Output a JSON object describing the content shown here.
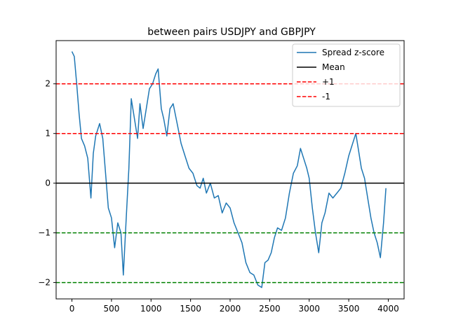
{
  "chart_data": {
    "type": "line",
    "title": "between pairs USDJPY and GBPJPY",
    "xlabel": "",
    "ylabel": "",
    "xlim": [
      -200,
      4200
    ],
    "ylim": [
      -2.33,
      2.87
    ],
    "xticks": [
      0,
      500,
      1000,
      1500,
      2000,
      2500,
      3000,
      3500,
      4000
    ],
    "xtick_labels": [
      "0",
      "500",
      "1000",
      "1500",
      "2000",
      "2500",
      "3000",
      "3500",
      "4000"
    ],
    "yticks": [
      -2,
      -1,
      0,
      1,
      2
    ],
    "ytick_labels": [
      "−2",
      "−1",
      "0",
      "1",
      "2"
    ],
    "grid": false,
    "legend_position": "upper right",
    "series": [
      {
        "name": "Spread z-score",
        "color": "#1f77b4",
        "x": [
          0,
          30,
          60,
          90,
          120,
          160,
          200,
          240,
          270,
          300,
          350,
          390,
          420,
          460,
          500,
          540,
          580,
          620,
          650,
          690,
          720,
          750,
          790,
          830,
          860,
          900,
          940,
          980,
          1020,
          1060,
          1090,
          1130,
          1160,
          1200,
          1240,
          1280,
          1330,
          1380,
          1430,
          1480,
          1530,
          1580,
          1620,
          1660,
          1700,
          1750,
          1800,
          1850,
          1900,
          1950,
          2000,
          2050,
          2100,
          2150,
          2200,
          2250,
          2300,
          2350,
          2400,
          2440,
          2480,
          2520,
          2560,
          2600,
          2650,
          2700,
          2750,
          2800,
          2850,
          2890,
          2930,
          2970,
          3000,
          3040,
          3080,
          3120,
          3160,
          3200,
          3250,
          3300,
          3350,
          3400,
          3450,
          3500,
          3550,
          3590,
          3620,
          3660,
          3700,
          3740,
          3780,
          3820,
          3860,
          3900,
          3940,
          3970
        ],
        "y": [
          2.65,
          2.55,
          2.0,
          1.4,
          0.9,
          0.75,
          0.5,
          -0.3,
          0.6,
          0.95,
          1.2,
          0.9,
          0.3,
          -0.5,
          -0.7,
          -1.3,
          -0.8,
          -1.0,
          -1.85,
          -0.6,
          0.3,
          1.7,
          1.3,
          0.9,
          1.6,
          1.1,
          1.5,
          1.9,
          2.0,
          2.2,
          2.3,
          1.5,
          1.3,
          0.95,
          1.5,
          1.6,
          1.2,
          0.8,
          0.55,
          0.3,
          0.2,
          -0.05,
          -0.1,
          0.1,
          -0.2,
          0.0,
          -0.3,
          -0.25,
          -0.6,
          -0.4,
          -0.5,
          -0.8,
          -1.0,
          -1.2,
          -1.6,
          -1.8,
          -1.85,
          -2.05,
          -2.1,
          -1.6,
          -1.55,
          -1.4,
          -1.1,
          -0.9,
          -0.95,
          -0.7,
          -0.2,
          0.2,
          0.35,
          0.7,
          0.5,
          0.3,
          0.1,
          -0.5,
          -1.0,
          -1.4,
          -0.8,
          -0.6,
          -0.2,
          -0.3,
          -0.2,
          -0.1,
          0.2,
          0.55,
          0.8,
          1.0,
          0.7,
          0.3,
          0.1,
          -0.3,
          -0.7,
          -1.0,
          -1.2,
          -1.5,
          -0.8,
          -0.1
        ]
      }
    ],
    "hlines": [
      {
        "y": 0,
        "color": "#000000",
        "style": "solid"
      },
      {
        "y": 1,
        "color": "#ff0000",
        "style": "dashed"
      },
      {
        "y": 2,
        "color": "#ff0000",
        "style": "dashed"
      },
      {
        "y": -1,
        "color": "#008000",
        "style": "dashed"
      },
      {
        "y": -2,
        "color": "#008000",
        "style": "dashed"
      }
    ],
    "legend": [
      {
        "label": "Spread z-score",
        "color": "#1f77b4",
        "style": "solid"
      },
      {
        "label": "Mean",
        "color": "#000000",
        "style": "solid"
      },
      {
        "label": "+1",
        "color": "#ff0000",
        "style": "dashed"
      },
      {
        "label": "-1",
        "color": "#ff0000",
        "style": "dashed"
      }
    ]
  }
}
